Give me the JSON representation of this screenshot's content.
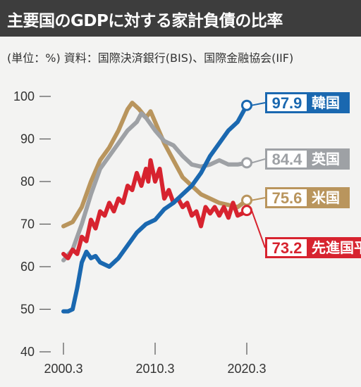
{
  "header": {
    "title": "主要国のGDPに対する家計負債の比率",
    "source": "(単位：%) 資料：国際決済銀行(BIS)、国際金融協会(IIF)"
  },
  "colors": {
    "korea": "#1a68b0",
    "uk": "#9ea1a5",
    "us": "#b9955d",
    "advanced": "#d7232f"
  },
  "chart_data": {
    "type": "line",
    "title": "主要国のGDPに対する家計負債の比率",
    "ylabel": "%",
    "ylim": [
      40,
      100
    ],
    "yticks": [
      "100",
      "90",
      "80",
      "70",
      "60",
      "50",
      "40"
    ],
    "xlim": [
      "2000-03",
      "2021-03"
    ],
    "xticks": [
      {
        "date": "2000-03",
        "label": "2000.3"
      },
      {
        "date": "2010-03",
        "label": "2010.3"
      },
      {
        "date": "2020-03",
        "label": "2020.3"
      }
    ],
    "series": [
      {
        "key": "us",
        "name": "米国",
        "end_label": "75.6",
        "points": [
          [
            "2000-03",
            69.5
          ],
          [
            "2001-03",
            70.5
          ],
          [
            "2002-03",
            74
          ],
          [
            "2003-03",
            80
          ],
          [
            "2004-03",
            85
          ],
          [
            "2005-03",
            88
          ],
          [
            "2006-03",
            92
          ],
          [
            "2007-03",
            97
          ],
          [
            "2007-09",
            98.5
          ],
          [
            "2008-06",
            97
          ],
          [
            "2009-03",
            95
          ],
          [
            "2009-09",
            96.5
          ],
          [
            "2010-03",
            94
          ],
          [
            "2011-03",
            89
          ],
          [
            "2012-03",
            85
          ],
          [
            "2013-03",
            81
          ],
          [
            "2014-03",
            79
          ],
          [
            "2015-03",
            77
          ],
          [
            "2016-03",
            76
          ],
          [
            "2017-03",
            75
          ],
          [
            "2018-03",
            74.5
          ],
          [
            "2019-03",
            74
          ],
          [
            "2020-03",
            75.6
          ]
        ]
      },
      {
        "key": "uk",
        "name": "英国",
        "end_label": "84.4",
        "points": [
          [
            "2000-03",
            61.5
          ],
          [
            "2001-03",
            64
          ],
          [
            "2002-03",
            70
          ],
          [
            "2003-03",
            77
          ],
          [
            "2004-03",
            83
          ],
          [
            "2005-03",
            86
          ],
          [
            "2006-03",
            89
          ],
          [
            "2007-03",
            92
          ],
          [
            "2008-03",
            94
          ],
          [
            "2008-09",
            96
          ],
          [
            "2009-03",
            95
          ],
          [
            "2010-03",
            92
          ],
          [
            "2011-03",
            89.5
          ],
          [
            "2012-03",
            88.5
          ],
          [
            "2013-03",
            86
          ],
          [
            "2014-03",
            84
          ],
          [
            "2015-03",
            83.5
          ],
          [
            "2016-03",
            84
          ],
          [
            "2017-03",
            85
          ],
          [
            "2018-03",
            84
          ],
          [
            "2019-03",
            84
          ],
          [
            "2020-03",
            84.4
          ]
        ]
      },
      {
        "key": "advanced",
        "name": "先進国平均",
        "end_label": "73.2",
        "points": [
          [
            "2000-03",
            63
          ],
          [
            "2000-09",
            62
          ],
          [
            "2001-03",
            64
          ],
          [
            "2001-09",
            63
          ],
          [
            "2002-03",
            67
          ],
          [
            "2002-09",
            66
          ],
          [
            "2003-03",
            71
          ],
          [
            "2003-09",
            69
          ],
          [
            "2004-03",
            73
          ],
          [
            "2004-09",
            72
          ],
          [
            "2005-03",
            75
          ],
          [
            "2005-09",
            73
          ],
          [
            "2006-03",
            76
          ],
          [
            "2006-09",
            75
          ],
          [
            "2007-03",
            79
          ],
          [
            "2007-09",
            78
          ],
          [
            "2008-03",
            82
          ],
          [
            "2008-09",
            79
          ],
          [
            "2009-03",
            83
          ],
          [
            "2009-06",
            80
          ],
          [
            "2009-09",
            85
          ],
          [
            "2010-03",
            80
          ],
          [
            "2010-09",
            83
          ],
          [
            "2011-03",
            76
          ],
          [
            "2011-09",
            78
          ],
          [
            "2012-03",
            75
          ],
          [
            "2012-09",
            76
          ],
          [
            "2013-03",
            74
          ],
          [
            "2013-09",
            75
          ],
          [
            "2014-03",
            72
          ],
          [
            "2014-09",
            73
          ],
          [
            "2015-03",
            69.5
          ],
          [
            "2015-09",
            74
          ],
          [
            "2016-03",
            72.5
          ],
          [
            "2016-09",
            74
          ],
          [
            "2017-03",
            72
          ],
          [
            "2017-09",
            74
          ],
          [
            "2018-03",
            71.5
          ],
          [
            "2018-09",
            75
          ],
          [
            "2019-03",
            72
          ],
          [
            "2019-09",
            72.5
          ],
          [
            "2020-03",
            73.2
          ]
        ]
      },
      {
        "key": "korea",
        "name": "韓国",
        "end_label": "97.9",
        "points": [
          [
            "2000-03",
            49.5
          ],
          [
            "2000-09",
            49.5
          ],
          [
            "2001-03",
            50
          ],
          [
            "2001-09",
            55
          ],
          [
            "2002-03",
            61
          ],
          [
            "2002-09",
            63.5
          ],
          [
            "2003-03",
            62
          ],
          [
            "2003-09",
            62.5
          ],
          [
            "2004-03",
            61
          ],
          [
            "2005-03",
            60
          ],
          [
            "2006-03",
            62
          ],
          [
            "2007-03",
            65
          ],
          [
            "2008-03",
            68
          ],
          [
            "2009-03",
            70
          ],
          [
            "2010-03",
            71
          ],
          [
            "2011-03",
            73.5
          ],
          [
            "2012-03",
            75
          ],
          [
            "2013-03",
            77
          ],
          [
            "2014-03",
            79
          ],
          [
            "2015-03",
            82
          ],
          [
            "2016-03",
            86
          ],
          [
            "2017-03",
            89
          ],
          [
            "2018-03",
            92
          ],
          [
            "2019-03",
            94
          ],
          [
            "2020-03",
            97.9
          ]
        ]
      }
    ]
  }
}
